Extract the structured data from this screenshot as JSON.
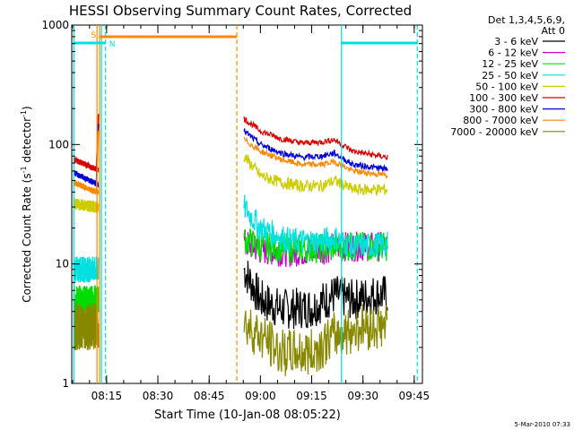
{
  "chart_data": {
    "type": "line",
    "title": "HESSI Observing Summary Count Rates, Corrected",
    "xlabel": "Start Time (10-Jan-08 08:05:22)",
    "ylabel_main": "Corrected Count Rate (s",
    "ylabel_sup1": "-1",
    "ylabel_mid": " detector",
    "ylabel_sup2": "-1",
    "ylabel_end": ")",
    "yscale": "log",
    "ylim": [
      1,
      1000
    ],
    "xlim_minutes": [
      8.08,
      9.79
    ],
    "y_ticks": [
      {
        "value": 1,
        "label": "1"
      },
      {
        "value": 10,
        "label": "10"
      },
      {
        "value": 100,
        "label": "100"
      },
      {
        "value": 1000,
        "label": "1000"
      }
    ],
    "x_ticks": [
      {
        "value": 8.25,
        "label": "08:15"
      },
      {
        "value": 8.5,
        "label": "08:30"
      },
      {
        "value": 8.75,
        "label": "08:45"
      },
      {
        "value": 9.0,
        "label": "09:00"
      },
      {
        "value": 9.25,
        "label": "09:15"
      },
      {
        "value": 9.5,
        "label": "09:30"
      },
      {
        "value": 9.75,
        "label": "09:45"
      }
    ],
    "legend_header": [
      "Det 1,3,4,5,6,9,",
      "Att 0"
    ],
    "legend_placement": "right",
    "series": [
      {
        "name": "3 - 6 keV",
        "color": "#000000",
        "values": [
          {
            "x": 8.09,
            "y": null
          },
          {
            "x": 8.92,
            "y": 9.0
          },
          {
            "x": 9.0,
            "y": 5.0
          },
          {
            "x": 9.1,
            "y": 4.2
          },
          {
            "x": 9.25,
            "y": 4.3
          },
          {
            "x": 9.36,
            "y": 5.5
          },
          {
            "x": 9.45,
            "y": 5.0
          },
          {
            "x": 9.55,
            "y": 5.5
          },
          {
            "x": 9.62,
            "y": 5.5
          }
        ]
      },
      {
        "name": "6 - 12 keV",
        "color": "#cc00cc",
        "values": [
          {
            "x": 8.92,
            "y": 15.0
          },
          {
            "x": 9.0,
            "y": 13.0
          },
          {
            "x": 9.15,
            "y": 12.5
          },
          {
            "x": 9.3,
            "y": 13.0
          },
          {
            "x": 9.36,
            "y": 14.0
          }
        ]
      },
      {
        "name": "12 - 25 keV",
        "color": "#00dd00",
        "values": [
          {
            "x": 8.09,
            "y": 5.0
          },
          {
            "x": 8.2,
            "y": 5.0
          },
          {
            "x": 8.92,
            "y": 16.0
          },
          {
            "x": 9.0,
            "y": 14.0
          },
          {
            "x": 9.15,
            "y": 13.5
          },
          {
            "x": 9.3,
            "y": 13.5
          },
          {
            "x": 9.36,
            "y": 14.0
          }
        ]
      },
      {
        "name": "25 - 50 keV",
        "color": "#00e0e0",
        "values": [
          {
            "x": 8.09,
            "y": 9.0
          },
          {
            "x": 8.2,
            "y": 9.0
          },
          {
            "x": 8.92,
            "y": 30.0
          },
          {
            "x": 9.0,
            "y": 20.0
          },
          {
            "x": 9.15,
            "y": 15.5
          },
          {
            "x": 9.3,
            "y": 15.5
          },
          {
            "x": 9.36,
            "y": 16.5
          },
          {
            "x": 9.45,
            "y": 14.0
          },
          {
            "x": 9.62,
            "y": 14.5
          }
        ]
      },
      {
        "name": "50 - 100 keV",
        "color": "#cccc00",
        "values": [
          {
            "x": 8.09,
            "y": 32.0
          },
          {
            "x": 8.2,
            "y": 30.0
          },
          {
            "x": 8.92,
            "y": 80.0
          },
          {
            "x": 9.0,
            "y": 55.0
          },
          {
            "x": 9.1,
            "y": 48.0
          },
          {
            "x": 9.2,
            "y": 45.0
          },
          {
            "x": 9.3,
            "y": 45.0
          },
          {
            "x": 9.36,
            "y": 50.0
          },
          {
            "x": 9.45,
            "y": 42.0
          },
          {
            "x": 9.62,
            "y": 42.0
          }
        ]
      },
      {
        "name": "100 - 300 keV",
        "color": "#dd0000",
        "values": [
          {
            "x": 8.09,
            "y": 75.0
          },
          {
            "x": 8.2,
            "y": 62.0
          },
          {
            "x": 8.92,
            "y": 165.0
          },
          {
            "x": 9.0,
            "y": 130.0
          },
          {
            "x": 9.1,
            "y": 112.0
          },
          {
            "x": 9.2,
            "y": 103.0
          },
          {
            "x": 9.3,
            "y": 105.0
          },
          {
            "x": 9.36,
            "y": 110.0
          },
          {
            "x": 9.45,
            "y": 88.0
          },
          {
            "x": 9.62,
            "y": 78.0
          }
        ]
      },
      {
        "name": "300 - 800 keV",
        "color": "#0000dd",
        "values": [
          {
            "x": 8.09,
            "y": 58.0
          },
          {
            "x": 8.2,
            "y": 47.0
          },
          {
            "x": 8.92,
            "y": 130.0
          },
          {
            "x": 9.0,
            "y": 100.0
          },
          {
            "x": 9.1,
            "y": 85.0
          },
          {
            "x": 9.2,
            "y": 78.0
          },
          {
            "x": 9.3,
            "y": 80.0
          },
          {
            "x": 9.36,
            "y": 85.0
          },
          {
            "x": 9.45,
            "y": 68.0
          },
          {
            "x": 9.62,
            "y": 62.0
          }
        ]
      },
      {
        "name": "800 - 7000 keV",
        "color": "#ff8800",
        "values": [
          {
            "x": 8.09,
            "y": 48.0
          },
          {
            "x": 8.2,
            "y": 40.0
          },
          {
            "x": 8.92,
            "y": 110.0
          },
          {
            "x": 9.0,
            "y": 88.0
          },
          {
            "x": 9.1,
            "y": 75.0
          },
          {
            "x": 9.2,
            "y": 68.0
          },
          {
            "x": 9.3,
            "y": 68.0
          },
          {
            "x": 9.36,
            "y": 72.0
          },
          {
            "x": 9.45,
            "y": 60.0
          },
          {
            "x": 9.62,
            "y": 55.0
          }
        ]
      },
      {
        "name": "7000 - 20000 keV",
        "color": "#888800",
        "values": [
          {
            "x": 8.09,
            "y": 3.0
          },
          {
            "x": 8.2,
            "y": 3.0
          },
          {
            "x": 8.92,
            "y": 3.2
          },
          {
            "x": 9.0,
            "y": 2.5
          },
          {
            "x": 9.1,
            "y": 1.8
          },
          {
            "x": 9.25,
            "y": 1.8
          },
          {
            "x": 9.36,
            "y": 2.5
          },
          {
            "x": 9.5,
            "y": 3.0
          },
          {
            "x": 9.62,
            "y": 3.0
          }
        ]
      }
    ],
    "annotations": {
      "saa_label": "S",
      "night_label": "N"
    }
  },
  "footer": {
    "timestamp": "5-Mar-2010 07:33"
  }
}
